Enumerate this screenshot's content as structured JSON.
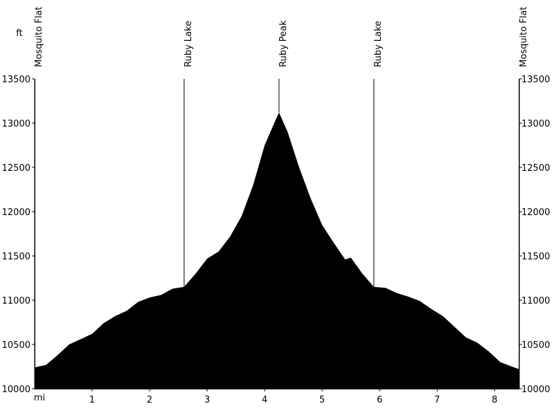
{
  "chart_data": {
    "type": "area",
    "x_label": "mi",
    "y_label": "ft",
    "x": [
      0,
      0.2,
      0.4,
      0.6,
      0.8,
      1.0,
      1.2,
      1.4,
      1.6,
      1.8,
      2.0,
      2.2,
      2.4,
      2.6,
      2.8,
      3.0,
      3.2,
      3.4,
      3.6,
      3.8,
      4.0,
      4.2,
      4.25,
      4.4,
      4.6,
      4.8,
      5.0,
      5.2,
      5.4,
      5.5,
      5.7,
      5.9,
      6.1,
      6.3,
      6.5,
      6.7,
      6.9,
      7.1,
      7.3,
      7.5,
      7.7,
      7.9,
      8.1,
      8.3,
      8.43
    ],
    "y": [
      10240,
      10270,
      10380,
      10500,
      10560,
      10620,
      10740,
      10820,
      10880,
      10980,
      11030,
      11060,
      11130,
      11150,
      11300,
      11470,
      11550,
      11720,
      11950,
      12300,
      12750,
      13050,
      13120,
      12900,
      12500,
      12150,
      11850,
      11650,
      11460,
      11480,
      11300,
      11150,
      11140,
      11080,
      11040,
      10990,
      10900,
      10820,
      10700,
      10580,
      10520,
      10420,
      10300,
      10250,
      10220
    ],
    "color": "#000000",
    "xlim": [
      0,
      8.43
    ],
    "ylim": [
      10000,
      13500
    ],
    "xticks": [
      1,
      2,
      3,
      4,
      5,
      6,
      7,
      8
    ],
    "yticks": [
      10000,
      10500,
      11000,
      11500,
      12000,
      12500,
      13000,
      13500
    ],
    "markers": [
      {
        "label": "Mosquito Flat",
        "x": 0
      },
      {
        "label": "Ruby Lake",
        "x": 2.6
      },
      {
        "label": "Ruby Peak",
        "x": 4.25
      },
      {
        "label": "Ruby Lake",
        "x": 5.9
      },
      {
        "label": "Mosquito Flat",
        "x": 8.43
      }
    ]
  }
}
